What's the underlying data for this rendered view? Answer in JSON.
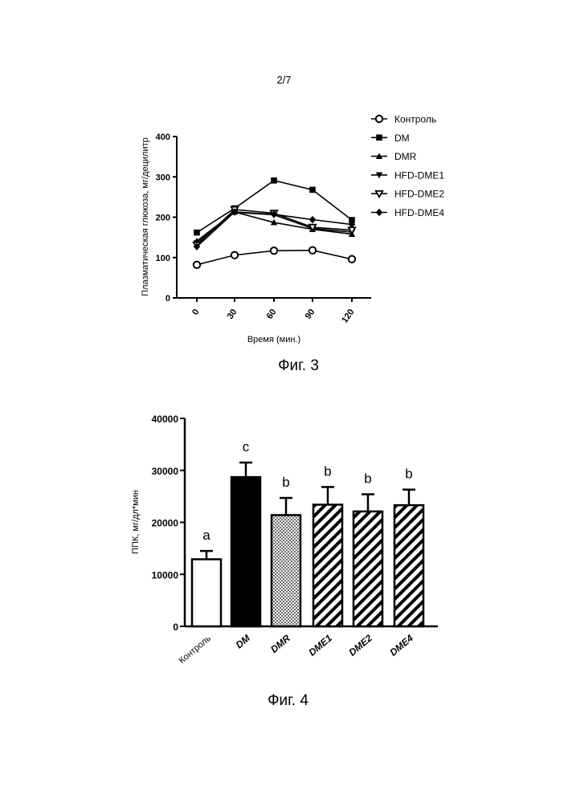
{
  "page_number": "2/7",
  "captions": {
    "fig3": "Фиг. 3",
    "fig4": "Фиг. 4"
  },
  "chart_data": [
    {
      "type": "line",
      "xlabel": "Время (мин.)",
      "ylabel": "Плазматическая глюкоза, мг/децилитр",
      "x": [
        0,
        30,
        60,
        90,
        120
      ],
      "ylim": [
        0,
        400
      ],
      "yticks": [
        0,
        100,
        200,
        300,
        400
      ],
      "legend_position": "top-right",
      "series": [
        {
          "name": "Контроль",
          "marker": "circle-open",
          "values": [
            82,
            106,
            117,
            118,
            96
          ]
        },
        {
          "name": "DM",
          "marker": "square",
          "values": [
            162,
            222,
            291,
            268,
            193
          ]
        },
        {
          "name": "DMR",
          "marker": "triangle-up",
          "values": [
            141,
            213,
            187,
            170,
            158
          ]
        },
        {
          "name": "HFD-DME1",
          "marker": "triangle-down",
          "values": [
            136,
            212,
            206,
            172,
            163
          ]
        },
        {
          "name": "HFD-DME2",
          "marker": "triangle-down-open",
          "values": [
            131,
            219,
            210,
            175,
            168
          ]
        },
        {
          "name": "HFD-DME4",
          "marker": "diamond",
          "values": [
            127,
            213,
            207,
            194,
            182
          ]
        }
      ]
    },
    {
      "type": "bar",
      "ylabel": "ППК, мг/дл*мин",
      "categories": [
        "Контроль",
        "DM",
        "DMR",
        "DME1",
        "DME2",
        "DME4"
      ],
      "values": [
        12900,
        28700,
        21400,
        23400,
        22100,
        23300
      ],
      "errors": [
        1600,
        2800,
        3300,
        3400,
        3300,
        3000
      ],
      "significance": [
        "a",
        "c",
        "b",
        "b",
        "b",
        "b"
      ],
      "fills": [
        "white",
        "black",
        "dots",
        "hatch",
        "hatch",
        "hatch"
      ],
      "ylim": [
        0,
        40000
      ],
      "yticks": [
        0,
        10000,
        20000,
        30000,
        40000
      ]
    }
  ]
}
